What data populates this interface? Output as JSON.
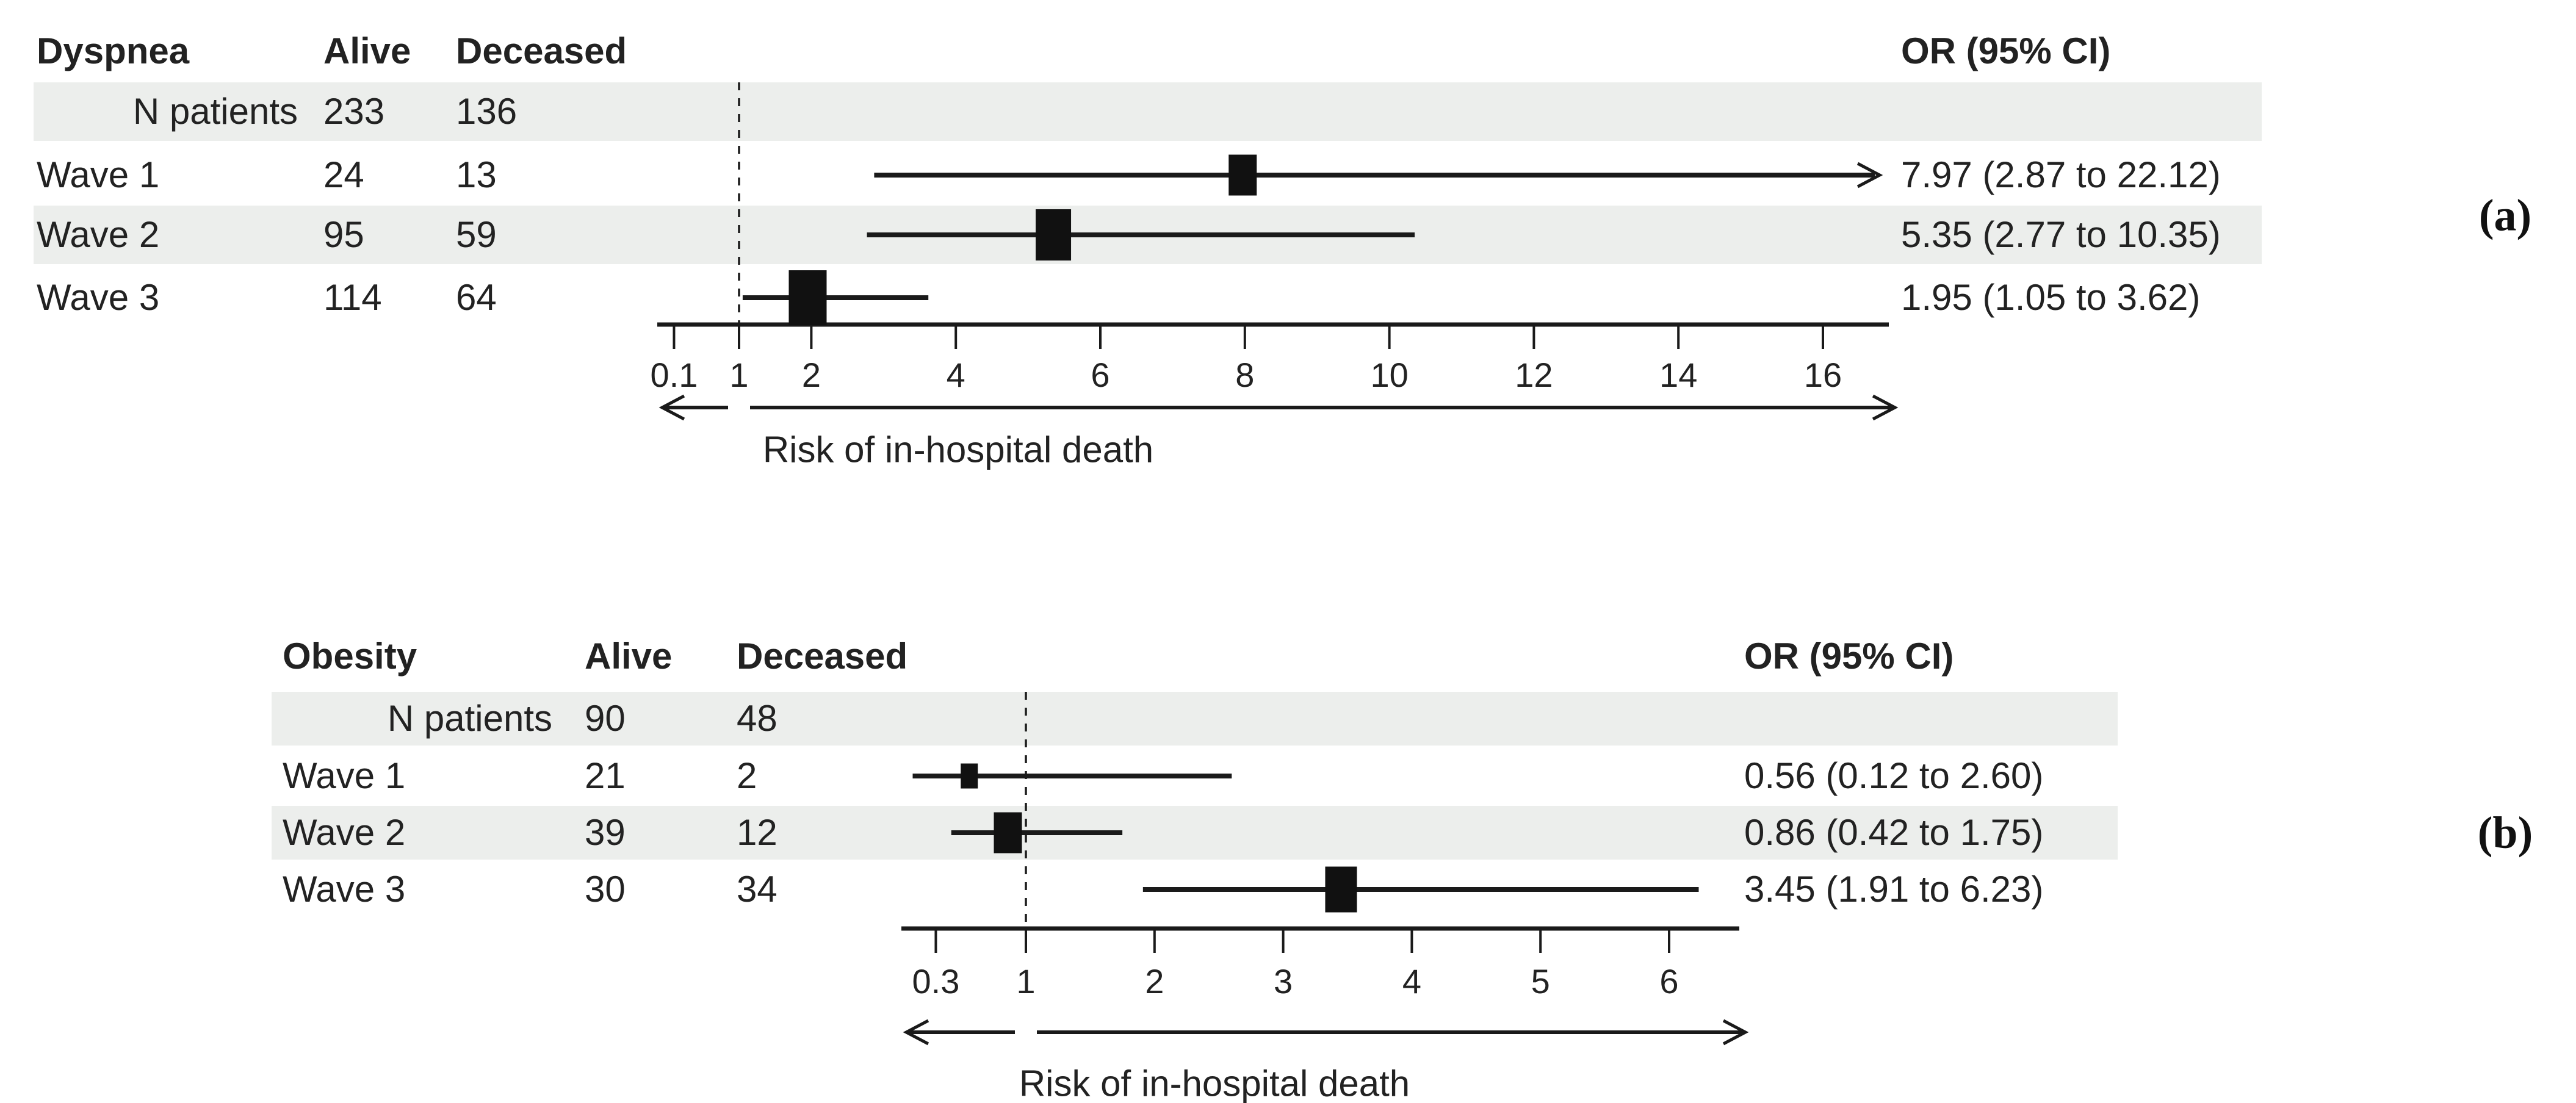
{
  "figure": {
    "background": "#ffffff",
    "text_color": "#222222",
    "band_color": "#eceeec",
    "marker_color": "#111111"
  },
  "chart_data": [
    {
      "type": "scatter",
      "subtype": "forest-plot",
      "panel_letter": "(a)",
      "group_label": "Dyspnea",
      "col_alive": "Alive",
      "col_deceased": "Deceased",
      "col_or": "OR (95% CI)",
      "n_patients": {
        "label": "N patients",
        "alive": "233",
        "deceased": "136"
      },
      "rows": [
        {
          "label": "Wave 1",
          "alive": "24",
          "deceased": "13",
          "or": 7.97,
          "ci_low": 2.87,
          "ci_high": 22.12,
          "or_text": "7.97 (2.87 to 22.12)"
        },
        {
          "label": "Wave 2",
          "alive": "95",
          "deceased": "59",
          "or": 5.35,
          "ci_low": 2.77,
          "ci_high": 10.35,
          "or_text": "5.35 (2.77 to 10.35)"
        },
        {
          "label": "Wave 3",
          "alive": "114",
          "deceased": "64",
          "or": 1.95,
          "ci_low": 1.05,
          "ci_high": 3.62,
          "or_text": "1.95 (1.05 to 3.62)"
        }
      ],
      "x_ticks": [
        0.1,
        1,
        2,
        4,
        6,
        8,
        10,
        12,
        14,
        16
      ],
      "x_range": [
        0.1,
        16.9
      ],
      "reference_line": 1,
      "xlabel": "Risk of in-hospital death",
      "shaded_table_rows": [
        0,
        2
      ],
      "grid": false,
      "legend_position": "none"
    },
    {
      "type": "scatter",
      "subtype": "forest-plot",
      "panel_letter": "(b)",
      "group_label": "Obesity",
      "col_alive": "Alive",
      "col_deceased": "Deceased",
      "col_or": "OR (95% CI)",
      "n_patients": {
        "label": "N patients",
        "alive": "90",
        "deceased": "48"
      },
      "rows": [
        {
          "label": "Wave 1",
          "alive": "21",
          "deceased": "2",
          "or": 0.56,
          "ci_low": 0.12,
          "ci_high": 2.6,
          "or_text": "0.56 (0.12 to 2.60)"
        },
        {
          "label": "Wave 2",
          "alive": "39",
          "deceased": "12",
          "or": 0.86,
          "ci_low": 0.42,
          "ci_high": 1.75,
          "or_text": "0.86 (0.42 to 1.75)"
        },
        {
          "label": "Wave 3",
          "alive": "30",
          "deceased": "34",
          "or": 3.45,
          "ci_low": 1.91,
          "ci_high": 6.23,
          "or_text": "3.45 (1.91 to 6.23)"
        }
      ],
      "x_ticks": [
        0.3,
        1,
        2,
        3,
        4,
        5,
        6
      ],
      "x_range": [
        0.03,
        6.55
      ],
      "reference_line": 1,
      "xlabel": "Risk of in-hospital death",
      "shaded_table_rows": [
        0,
        2
      ],
      "grid": false,
      "legend_position": "none"
    }
  ]
}
